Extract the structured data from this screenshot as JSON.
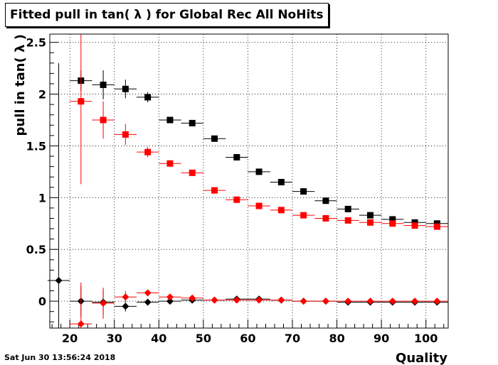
{
  "title": "Fitted pull in tan( λ ) for Global Rec All NoHits",
  "timestamp": "Sat Jun 30 13:56:24 2018",
  "chart_data": {
    "type": "scatter",
    "title": "Fitted pull in tan( λ ) for Global Rec All NoHits",
    "xlabel": "Quality",
    "ylabel": "pull in tan( λ )",
    "xlim": [
      15.5,
      105
    ],
    "ylim": [
      -0.26,
      2.58
    ],
    "xticks": [
      20,
      30,
      40,
      50,
      60,
      70,
      80,
      90,
      100
    ],
    "yticks": [
      0,
      0.5,
      1,
      1.5,
      2,
      2.5
    ],
    "yticklabels": [
      "0",
      "0.5",
      "1",
      "1.5",
      "2",
      "2.5"
    ],
    "grid": true,
    "bin_halfwidth": 2.5,
    "series": [
      {
        "color": "#000000",
        "marker": "square",
        "x": [
          22.5,
          27.5,
          32.5,
          37.5,
          42.5,
          47.5,
          52.5,
          57.5,
          62.5,
          67.5,
          72.5,
          77.5,
          82.5,
          87.5,
          92.5,
          97.5,
          102.5
        ],
        "y": [
          2.13,
          2.09,
          2.05,
          1.97,
          1.75,
          1.72,
          1.57,
          1.39,
          1.25,
          1.15,
          1.06,
          0.97,
          0.89,
          0.83,
          0.79,
          0.76,
          0.75
        ],
        "err": [
          0.1,
          0.14,
          0.09,
          0.05,
          0.03,
          0.02,
          0.02,
          0.02,
          0.02,
          0.01,
          0.01,
          0.01,
          0.01,
          0.01,
          0.01,
          0.01,
          0.01
        ]
      },
      {
        "color": "#ff0000",
        "marker": "square",
        "x": [
          22.5,
          27.5,
          32.5,
          37.5,
          42.5,
          47.5,
          52.5,
          57.5,
          62.5,
          67.5,
          72.5,
          77.5,
          82.5,
          87.5,
          92.5,
          97.5,
          102.5
        ],
        "y": [
          1.93,
          1.75,
          1.61,
          1.44,
          1.33,
          1.24,
          1.07,
          0.98,
          0.92,
          0.88,
          0.83,
          0.8,
          0.78,
          0.76,
          0.75,
          0.73,
          0.72
        ],
        "err": [
          0.8,
          0.18,
          0.1,
          0.05,
          0.03,
          0.02,
          0.02,
          0.02,
          0.01,
          0.01,
          0.01,
          0.01,
          0.01,
          0.01,
          0.01,
          0.01,
          0.01
        ]
      },
      {
        "color": "#000000",
        "marker": "diamond",
        "x": [
          17.5,
          22.5,
          27.5,
          32.5,
          37.5,
          42.5,
          47.5,
          52.5,
          57.5,
          62.5,
          67.5,
          72.5,
          77.5,
          82.5,
          87.5,
          92.5,
          97.5,
          102.5
        ],
        "y": [
          0.2,
          0.0,
          -0.01,
          -0.05,
          -0.01,
          0.0,
          0.01,
          0.01,
          0.02,
          0.02,
          0.01,
          0.0,
          0.0,
          -0.01,
          -0.01,
          -0.01,
          -0.01,
          -0.01
        ],
        "err": [
          2.1,
          0.15,
          0.12,
          0.05,
          0.03,
          0.02,
          0.02,
          0.01,
          0.01,
          0.01,
          0.01,
          0.01,
          0.01,
          0.01,
          0.01,
          0.01,
          0.01,
          0.01
        ]
      },
      {
        "color": "#ff0000",
        "marker": "diamond",
        "x": [
          22.5,
          27.5,
          32.5,
          37.5,
          42.5,
          47.5,
          52.5,
          57.5,
          62.5,
          67.5,
          72.5,
          77.5,
          82.5,
          87.5,
          92.5,
          97.5,
          102.5
        ],
        "y": [
          -0.22,
          -0.02,
          0.04,
          0.08,
          0.04,
          0.03,
          0.01,
          0.01,
          0.01,
          0.01,
          0.0,
          0.0,
          0.0,
          0.0,
          0.0,
          0.0,
          0.0
        ],
        "err": [
          0.4,
          0.15,
          0.06,
          0.03,
          0.02,
          0.02,
          0.01,
          0.01,
          0.01,
          0.01,
          0.01,
          0.01,
          0.01,
          0.01,
          0.01,
          0.01,
          0.01
        ]
      }
    ]
  }
}
